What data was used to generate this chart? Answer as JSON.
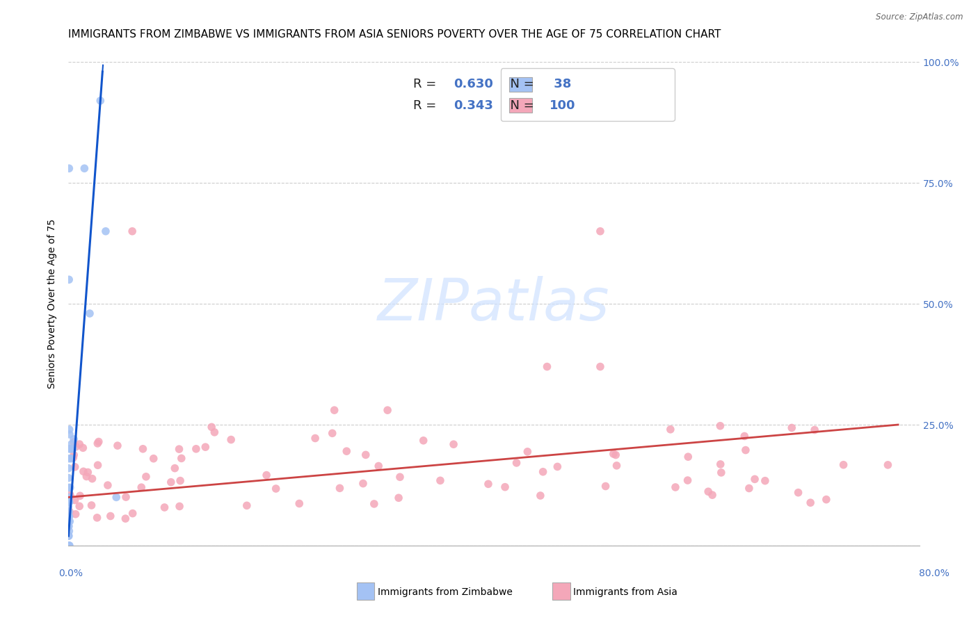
{
  "title": "IMMIGRANTS FROM ZIMBABWE VS IMMIGRANTS FROM ASIA SENIORS POVERTY OVER THE AGE OF 75 CORRELATION CHART",
  "source": "Source: ZipAtlas.com",
  "ylabel": "Seniors Poverty Over the Age of 75",
  "xlim": [
    0.0,
    80.0
  ],
  "ylim": [
    0.0,
    100.0
  ],
  "zimbabwe_color": "#a4c2f4",
  "asia_color": "#f4a7b9",
  "zimbabwe_line_color": "#1155cc",
  "asia_line_color": "#cc4444",
  "background_color": "#ffffff",
  "grid_color": "#cccccc",
  "title_fontsize": 11,
  "axis_label_fontsize": 10,
  "tick_fontsize": 10,
  "legend_fontsize": 13,
  "watermark_color": "#cfe2ff",
  "R_zim": 0.63,
  "N_zim": 38,
  "R_asia": 0.343,
  "N_asia": 100
}
